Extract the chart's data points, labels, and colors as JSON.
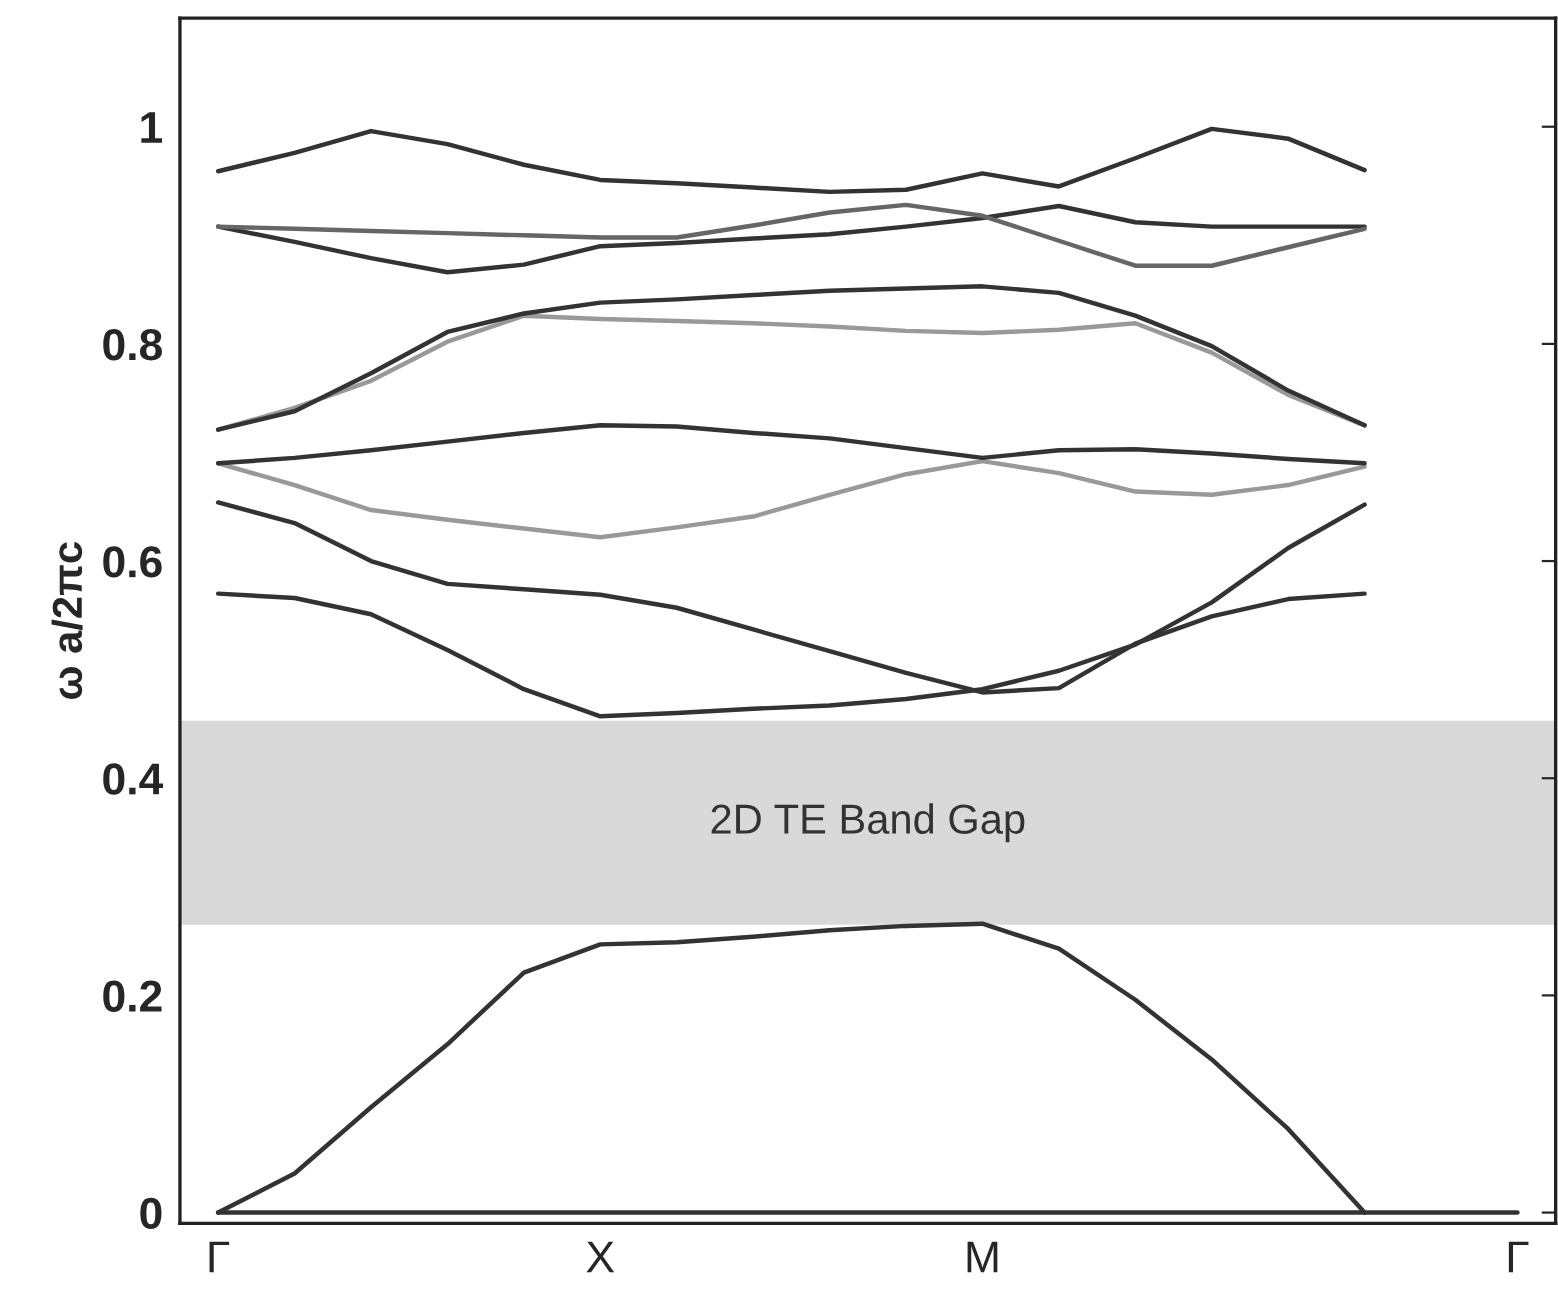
{
  "chart_data": {
    "type": "line",
    "ylabel": "ω a/2πc",
    "categories": [
      "Γ",
      null,
      null,
      null,
      null,
      "X",
      null,
      null,
      null,
      null,
      "M",
      null,
      null,
      null,
      null,
      null,
      null,
      "Γ"
    ],
    "ylim": [
      -0.01,
      1.1
    ],
    "yticks": [
      0,
      0.2,
      0.4,
      0.6,
      0.8,
      1
    ],
    "grid": false,
    "legend": false,
    "marker": "none",
    "line_style": "solid",
    "bands": [
      {
        "axis": "y",
        "from": 0.265,
        "to": 0.453,
        "label": "2D TE Band Gap",
        "color": "#d9d9d9"
      }
    ],
    "series": [
      {
        "color": "#333333",
        "values": [
          0,
          0,
          0,
          0,
          0,
          0,
          0,
          0,
          0,
          0,
          0,
          0,
          0,
          0,
          0,
          0,
          0,
          0
        ]
      },
      {
        "color": "#333333",
        "values": [
          0,
          0.036,
          0.097,
          0.155,
          0.221,
          0.247,
          0.249,
          0.254,
          0.26,
          0.264,
          0.266,
          0.243,
          0.196,
          0.141,
          0.077,
          0,
          null,
          null
        ]
      },
      {
        "color": "#333333",
        "values": [
          0.57,
          0.566,
          0.551,
          0.518,
          0.482,
          0.457,
          0.46,
          0.464,
          0.467,
          0.473,
          0.482,
          0.499,
          0.523,
          0.562,
          0.612,
          0.652,
          null,
          null
        ]
      },
      {
        "color": "#333333",
        "values": [
          0.654,
          0.635,
          0.6,
          0.579,
          0.574,
          0.569,
          0.557,
          0.537,
          0.517,
          0.497,
          0.479,
          0.483,
          0.524,
          0.549,
          0.565,
          0.57,
          null,
          null
        ]
      },
      {
        "color": "#999999",
        "values": [
          0.69,
          0.67,
          0.647,
          0.638,
          0.63,
          0.622,
          0.631,
          0.641,
          0.661,
          0.68,
          0.692,
          0.681,
          0.664,
          0.661,
          0.67,
          0.687,
          null,
          null
        ]
      },
      {
        "color": "#333333",
        "values": [
          0.69,
          0.695,
          0.702,
          0.71,
          0.718,
          0.725,
          0.724,
          0.718,
          0.713,
          0.704,
          0.695,
          0.702,
          0.703,
          0.699,
          0.694,
          0.69,
          null,
          null
        ]
      },
      {
        "color": "#999999",
        "values": [
          0.721,
          0.741,
          0.766,
          0.802,
          0.826,
          0.823,
          0.821,
          0.819,
          0.816,
          0.812,
          0.81,
          0.813,
          0.819,
          0.792,
          0.753,
          0.725,
          null,
          null
        ]
      },
      {
        "color": "#333333",
        "values": [
          0.721,
          0.738,
          0.773,
          0.811,
          0.828,
          0.838,
          0.841,
          0.845,
          0.849,
          0.851,
          0.853,
          0.847,
          0.826,
          0.798,
          0.757,
          0.725,
          null,
          null
        ]
      },
      {
        "color": "#333333",
        "values": [
          0.908,
          0.894,
          0.879,
          0.866,
          0.873,
          0.89,
          0.893,
          0.897,
          0.901,
          0.908,
          0.916,
          0.927,
          0.912,
          0.908,
          0.908,
          0.908,
          null,
          null
        ]
      },
      {
        "color": "#666666",
        "values": [
          0.908,
          0.906,
          0.904,
          0.902,
          0.9,
          0.898,
          0.898,
          0.909,
          0.921,
          0.928,
          0.918,
          0.895,
          0.872,
          0.872,
          0.889,
          0.906,
          null,
          null
        ]
      },
      {
        "color": "#333333",
        "values": [
          0.959,
          0.976,
          0.996,
          0.984,
          0.965,
          0.951,
          0.948,
          0.944,
          0.94,
          0.942,
          0.957,
          0.945,
          0.971,
          0.998,
          0.989,
          0.96,
          null,
          null
        ]
      }
    ]
  }
}
